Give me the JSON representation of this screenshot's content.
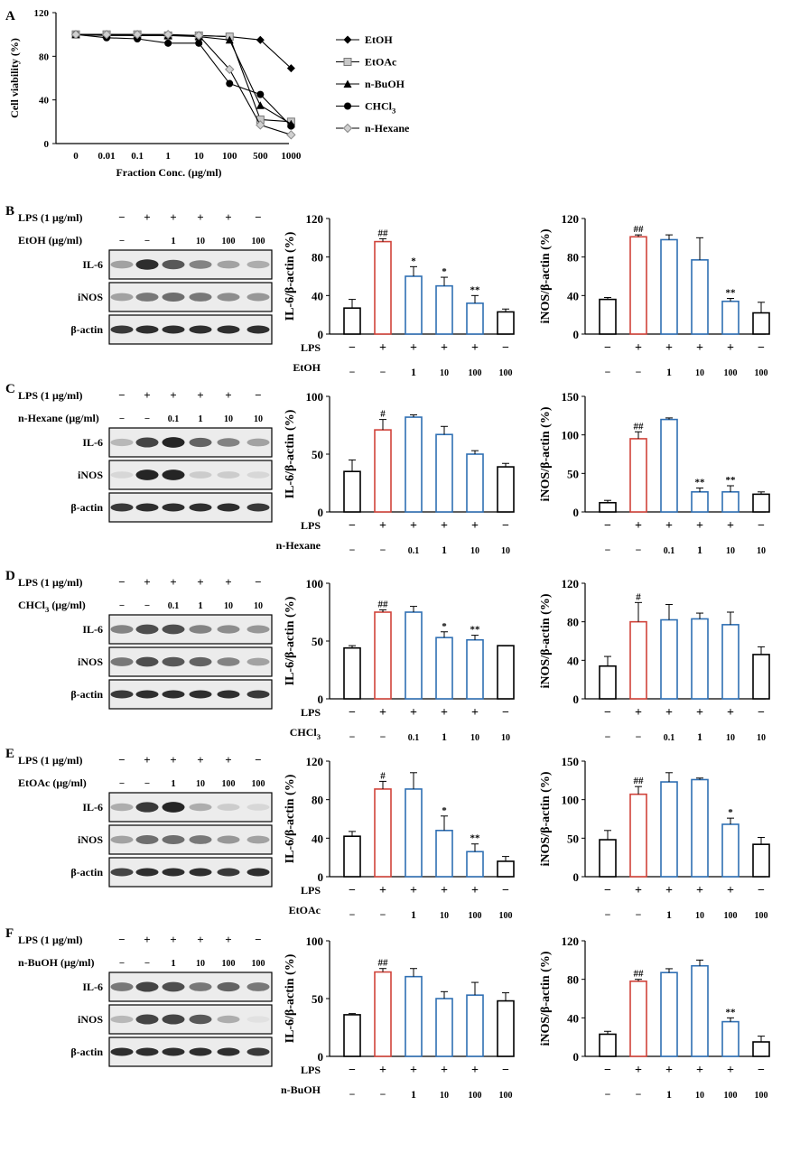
{
  "colors": {
    "axis": "#000000",
    "lps_bar": "#d0433a",
    "treat_bar": "#2f6fb3",
    "ctrl_bar": "#000000",
    "blot_bg": "#ececec",
    "band": "#1a1a1a"
  },
  "panel_a": {
    "letter": "A",
    "chart_data": {
      "type": "line",
      "ylabel": "Cell viability (%)",
      "xlabel": "Fraction Conc. (μg/ml)",
      "categories": [
        "0",
        "0.01",
        "0.1",
        "1",
        "10",
        "100",
        "500",
        "1000"
      ],
      "ylim": [
        0,
        120
      ],
      "yticks": [
        0,
        40,
        80,
        120
      ],
      "series": [
        {
          "name": "EtOH",
          "marker": "diamond",
          "values": [
            100,
            99,
            99,
            99,
            99,
            98,
            95,
            69
          ]
        },
        {
          "name": "EtOAc",
          "marker": "square",
          "values": [
            100,
            100,
            100,
            99,
            99,
            98,
            22,
            20
          ]
        },
        {
          "name": "n-BuOH",
          "marker": "triangle",
          "values": [
            100,
            100,
            99,
            99,
            98,
            95,
            35,
            18
          ]
        },
        {
          "name": "CHCl3",
          "marker": "circle",
          "values": [
            100,
            97,
            96,
            92,
            92,
            55,
            45,
            16
          ]
        },
        {
          "name": "n-Hexane",
          "marker": "diamond-open",
          "values": [
            100,
            100,
            100,
            100,
            99,
            68,
            17,
            8
          ]
        }
      ],
      "legend_placement": "right"
    }
  },
  "rows": [
    {
      "letter": "B",
      "lps_label": "LPS (1 μg/ml)",
      "lps_signs": [
        "−",
        "+",
        "+",
        "+",
        "+",
        "−"
      ],
      "treat_label": "EtOH (μg/ml)",
      "treat_doses": [
        "−",
        "−",
        "1",
        "10",
        "100",
        "100"
      ],
      "bands": [
        "IL-6",
        "iNOS",
        "β-actin"
      ],
      "x_lps": "LPS",
      "x_treat": "EtOH",
      "charts": [
        {
          "type": "bar",
          "ylabel": "IL-6/β-actin (%)",
          "ylim": [
            0,
            120
          ],
          "yticks": [
            0,
            40,
            80,
            120
          ],
          "values": [
            27,
            96,
            60,
            50,
            32,
            23
          ],
          "errors": [
            9,
            3,
            10,
            9,
            8,
            3
          ],
          "marks": [
            "",
            "##",
            "*",
            "*",
            "**",
            ""
          ]
        },
        {
          "type": "bar",
          "ylabel": "iNOS/β-actin (%)",
          "ylim": [
            0,
            120
          ],
          "yticks": [
            0,
            40,
            80,
            120
          ],
          "values": [
            36,
            101,
            98,
            77,
            34,
            22
          ],
          "errors": [
            2,
            2,
            5,
            23,
            3,
            11
          ],
          "marks": [
            "",
            "##",
            "",
            "",
            "**",
            ""
          ]
        }
      ]
    },
    {
      "letter": "C",
      "lps_label": "LPS (1 μg/ml)",
      "lps_signs": [
        "−",
        "+",
        "+",
        "+",
        "+",
        "−"
      ],
      "treat_label": "n-Hexane (μg/ml)",
      "treat_doses": [
        "−",
        "−",
        "0.1",
        "1",
        "10",
        "10"
      ],
      "bands": [
        "IL-6",
        "iNOS",
        "β-actin"
      ],
      "x_lps": "LPS",
      "x_treat": "n-Hexane",
      "charts": [
        {
          "type": "bar",
          "ylabel": "IL-6/β-actin (%)",
          "ylim": [
            0,
            100
          ],
          "yticks": [
            0,
            50,
            100
          ],
          "values": [
            35,
            71,
            82,
            67,
            50,
            39
          ],
          "errors": [
            10,
            9,
            2,
            7,
            3,
            3
          ],
          "marks": [
            "",
            "#",
            "",
            "",
            "",
            ""
          ]
        },
        {
          "type": "bar",
          "ylabel": "iNOS/β-actin (%)",
          "ylim": [
            0,
            150
          ],
          "yticks": [
            0,
            50,
            100,
            150
          ],
          "values": [
            12,
            95,
            120,
            26,
            26,
            23
          ],
          "errors": [
            3,
            9,
            2,
            5,
            8,
            3
          ],
          "marks": [
            "",
            "##",
            "",
            "**",
            "**",
            ""
          ]
        }
      ]
    },
    {
      "letter": "D",
      "lps_label": "LPS (1 μg/ml)",
      "lps_signs": [
        "−",
        "+",
        "+",
        "+",
        "+",
        "−"
      ],
      "treat_label": "CHCl3 (μg/ml)",
      "treat_doses": [
        "−",
        "−",
        "0.1",
        "1",
        "10",
        "10"
      ],
      "bands": [
        "IL-6",
        "iNOS",
        "β-actin"
      ],
      "x_lps": "LPS",
      "x_treat": "CHCl3",
      "charts": [
        {
          "type": "bar",
          "ylabel": "IL-6/β-actin (%)",
          "ylim": [
            0,
            100
          ],
          "yticks": [
            0,
            50,
            100
          ],
          "values": [
            44,
            75,
            75,
            53,
            51,
            46
          ],
          "errors": [
            2,
            2,
            5,
            5,
            4,
            0
          ],
          "marks": [
            "",
            "##",
            "",
            "*",
            "**",
            ""
          ]
        },
        {
          "type": "bar",
          "ylabel": "iNOS/β-actin (%)",
          "ylim": [
            0,
            120
          ],
          "yticks": [
            0,
            40,
            80,
            120
          ],
          "values": [
            34,
            80,
            82,
            83,
            77,
            46
          ],
          "errors": [
            10,
            20,
            16,
            6,
            13,
            8
          ],
          "marks": [
            "",
            "#",
            "",
            "",
            "",
            ""
          ]
        }
      ]
    },
    {
      "letter": "E",
      "lps_label": "LPS (1 μg/ml)",
      "lps_signs": [
        "−",
        "+",
        "+",
        "+",
        "+",
        "−"
      ],
      "treat_label": "EtOAc (μg/ml)",
      "treat_doses": [
        "−",
        "−",
        "1",
        "10",
        "100",
        "100"
      ],
      "bands": [
        "IL-6",
        "iNOS",
        "β-actin"
      ],
      "x_lps": "LPS",
      "x_treat": "EtOAc",
      "charts": [
        {
          "type": "bar",
          "ylabel": "IL-6/β-actin (%)",
          "ylim": [
            0,
            120
          ],
          "yticks": [
            0,
            40,
            80,
            120
          ],
          "values": [
            42,
            91,
            91,
            48,
            26,
            16
          ],
          "errors": [
            5,
            8,
            17,
            15,
            8,
            5
          ],
          "marks": [
            "",
            "#",
            "",
            "*",
            "**",
            ""
          ]
        },
        {
          "type": "bar",
          "ylabel": "iNOS/β-actin (%)",
          "ylim": [
            0,
            150
          ],
          "yticks": [
            0,
            50,
            100,
            150
          ],
          "values": [
            48,
            107,
            123,
            126,
            68,
            42
          ],
          "errors": [
            12,
            10,
            12,
            2,
            8,
            9
          ],
          "marks": [
            "",
            "##",
            "",
            "",
            "*",
            ""
          ]
        }
      ]
    },
    {
      "letter": "F",
      "lps_label": "LPS (1 μg/ml)",
      "lps_signs": [
        "−",
        "+",
        "+",
        "+",
        "+",
        "−"
      ],
      "treat_label": "n-BuOH (μg/ml)",
      "treat_doses": [
        "−",
        "−",
        "1",
        "10",
        "100",
        "100"
      ],
      "bands": [
        "IL-6",
        "iNOS",
        "β-actin"
      ],
      "x_lps": "LPS",
      "x_treat": "n-BuOH",
      "charts": [
        {
          "type": "bar",
          "ylabel": "IL-6/β-actin (%)",
          "ylim": [
            0,
            100
          ],
          "yticks": [
            0,
            50,
            100
          ],
          "values": [
            36,
            73,
            69,
            50,
            53,
            48
          ],
          "errors": [
            1,
            3,
            7,
            6,
            11,
            7
          ],
          "marks": [
            "",
            "##",
            "",
            "",
            "",
            ""
          ]
        },
        {
          "type": "bar",
          "ylabel": "iNOS/β-actin (%)",
          "ylim": [
            0,
            120
          ],
          "yticks": [
            0,
            40,
            80,
            120
          ],
          "values": [
            23,
            78,
            87,
            94,
            36,
            15
          ],
          "errors": [
            3,
            2,
            4,
            6,
            4,
            6
          ],
          "marks": [
            "",
            "##",
            "",
            "",
            "**",
            ""
          ]
        }
      ]
    }
  ]
}
